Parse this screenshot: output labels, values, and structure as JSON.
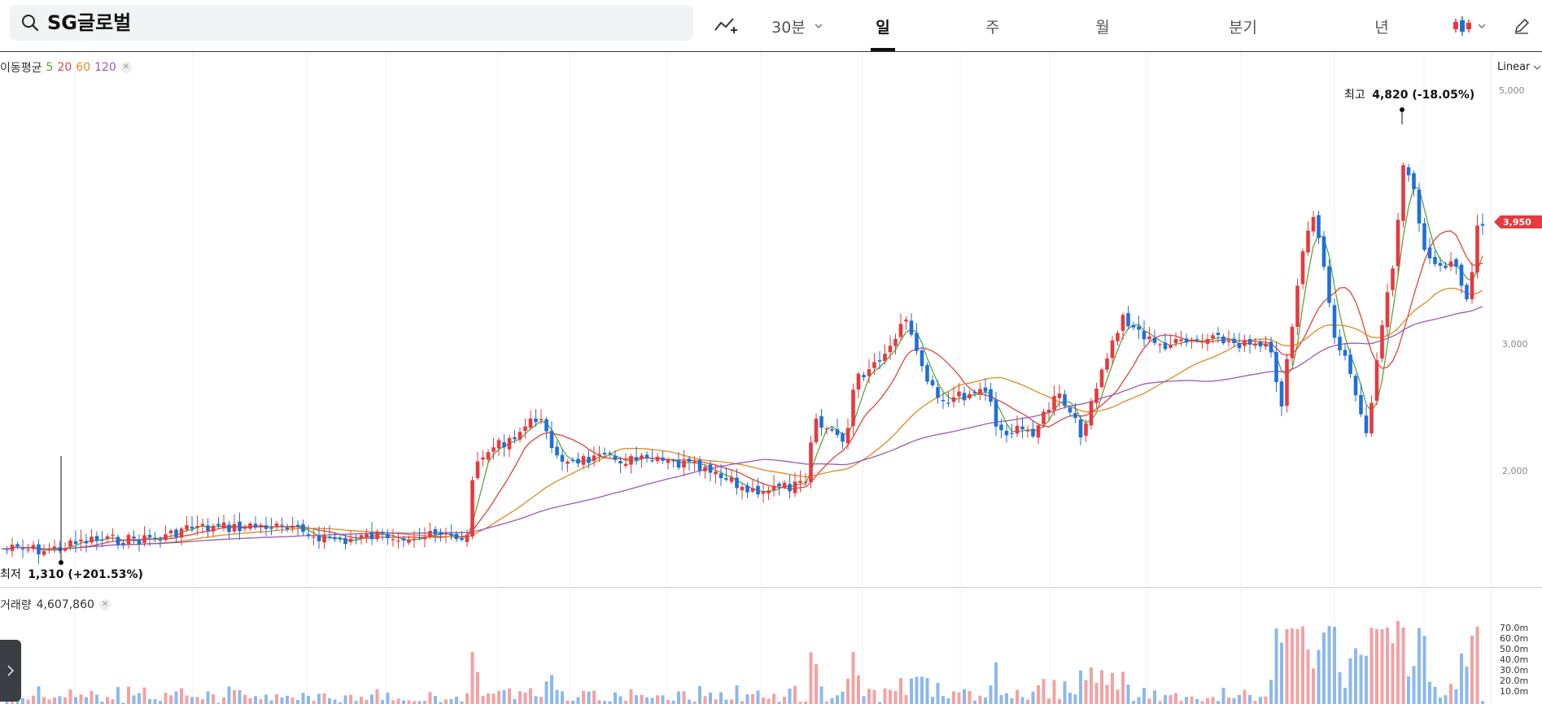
{
  "search": {
    "value": "SG글로벌"
  },
  "toolbar": {
    "interval": "30분",
    "tabs": [
      {
        "label": "일",
        "active": true
      },
      {
        "label": "주",
        "active": false
      },
      {
        "label": "월",
        "active": false
      },
      {
        "label": "분기",
        "active": false
      },
      {
        "label": "년",
        "active": false
      }
    ],
    "icons": [
      "indicator-add-icon",
      "chevron-down-icon",
      "candlestick-icon",
      "pencil-icon"
    ]
  },
  "price_pane": {
    "legend_title": "이동평균",
    "ma_periods": [
      {
        "label": "5",
        "color": "#5aa63a"
      },
      {
        "label": "20",
        "color": "#e0443e"
      },
      {
        "label": "60",
        "color": "#e08a1e"
      },
      {
        "label": "120",
        "color": "#9b59b6"
      }
    ],
    "scale_mode": "Linear",
    "y_ticks": [
      "5,000",
      "3,000",
      "2,000"
    ],
    "current_price": "3,950",
    "high_label_prefix": "최고",
    "high_label_value": "4,820 (-18.05%)",
    "low_label_prefix": "최저",
    "low_label_value": "1,310 (+201.53%)"
  },
  "volume_pane": {
    "legend_title": "거래량",
    "legend_value": "4,607,860",
    "y_ticks": [
      "70.0m",
      "60.0m",
      "50.0m",
      "40.0m",
      "30.0m",
      "20.0m",
      "10.0m"
    ]
  },
  "colors": {
    "up": "#e8393e",
    "down": "#1f6fd9",
    "vol_up": "#f2a2a4",
    "vol_down": "#8cb8ee",
    "price_tag": "#e8393e"
  }
}
